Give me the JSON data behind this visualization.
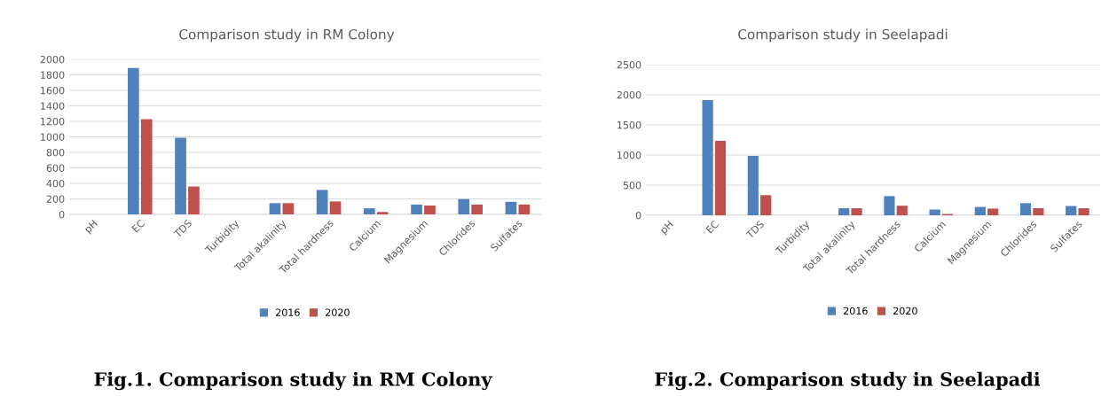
{
  "chart_data": [
    {
      "type": "bar",
      "title": "Comparison study in RM Colony",
      "categories": [
        "pH",
        "EC",
        "TDS",
        "Turbidity",
        "Total akalinity",
        "Total hardness",
        "Calcium",
        "Magnesium",
        "Chlorides",
        "Sulfates"
      ],
      "series": [
        {
          "name": "2016",
          "color": "#4f81bd",
          "values": [
            null,
            1890,
            990,
            null,
            145,
            316,
            79,
            127,
            197,
            162
          ]
        },
        {
          "name": "2020",
          "color": "#c0504d",
          "values": [
            null,
            1230,
            360,
            null,
            145,
            167,
            31,
            114,
            127,
            127
          ]
        }
      ],
      "ylim": [
        0,
        2000
      ],
      "yticks": [
        0,
        200,
        400,
        600,
        800,
        1000,
        1200,
        1400,
        1600,
        1800,
        2000
      ],
      "grid": "y",
      "legend": "bottom",
      "annotations": [
        "Fig.1. Comparison study in RM Colony"
      ]
    },
    {
      "type": "bar",
      "title": "Comparison study in Seelapadi",
      "categories": [
        "pH",
        "EC",
        "TDS",
        "Turbidity",
        "Total akalinity",
        "Total hardness",
        "Calcium",
        "Magnesium",
        "Chlorides",
        "Sulfates"
      ],
      "series": [
        {
          "name": "2016",
          "color": "#4f81bd",
          "values": [
            null,
            1910,
            985,
            null,
            117,
            318,
            95,
            138,
            201,
            154
          ]
        },
        {
          "name": "2020",
          "color": "#c0504d",
          "values": [
            null,
            1234,
            334,
            null,
            117,
            159,
            21,
            111,
            117,
            117
          ]
        }
      ],
      "ylim": [
        0,
        2500
      ],
      "yticks": [
        0,
        500,
        1000,
        1500,
        2000,
        2500
      ],
      "grid": "y",
      "legend": "bottom",
      "annotations": [
        "Fig.2. Comparison study in Seelapadi"
      ]
    }
  ]
}
